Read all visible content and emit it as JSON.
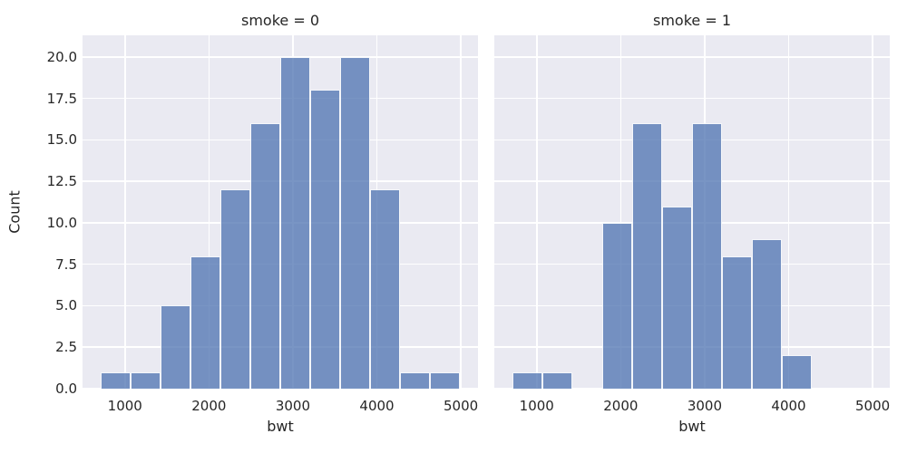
{
  "figure": {
    "background_color": "#ffffff",
    "panel_background_color": "#eaeaf2",
    "grid_color": "#ffffff",
    "bar_fill_color": "rgba(76,114,176,0.75)",
    "bar_fill_flat_hex": "#7995c4",
    "bar_edge_color": "rgba(255,255,255,0.92)",
    "text_color": "#262626"
  },
  "chart_data": {
    "type": "bar",
    "subtype": "faceted-histogram",
    "xlabel": "bwt",
    "ylabel": "Count",
    "grid": true,
    "xlim": [
      495,
      5204
    ],
    "ylim": [
      0,
      21.3
    ],
    "x_ticks": [
      1000,
      2000,
      3000,
      4000,
      5000
    ],
    "x_tick_labels": [
      "1000",
      "2000",
      "3000",
      "4000",
      "5000"
    ],
    "y_ticks": [
      0,
      2.5,
      5,
      7.5,
      10,
      12.5,
      15,
      17.5,
      20
    ],
    "y_tick_labels": [
      "0.0",
      "2.5",
      "5.0",
      "7.5",
      "10.0",
      "12.5",
      "15.0",
      "17.5",
      "20.0"
    ],
    "bin_edges": [
      709,
      1065.75,
      1422.5,
      1779.25,
      2136,
      2492.75,
      2849.5,
      3206.25,
      3563,
      3919.75,
      4276.5,
      4633.25,
      4990
    ],
    "facets": [
      {
        "title": "smoke = 0",
        "counts": [
          1,
          1,
          5,
          8,
          12,
          16,
          20,
          18,
          20,
          12,
          1,
          1
        ]
      },
      {
        "title": "smoke = 1",
        "counts": [
          1,
          1,
          0,
          10,
          16,
          11,
          16,
          8,
          9,
          2,
          0,
          0
        ]
      }
    ]
  }
}
